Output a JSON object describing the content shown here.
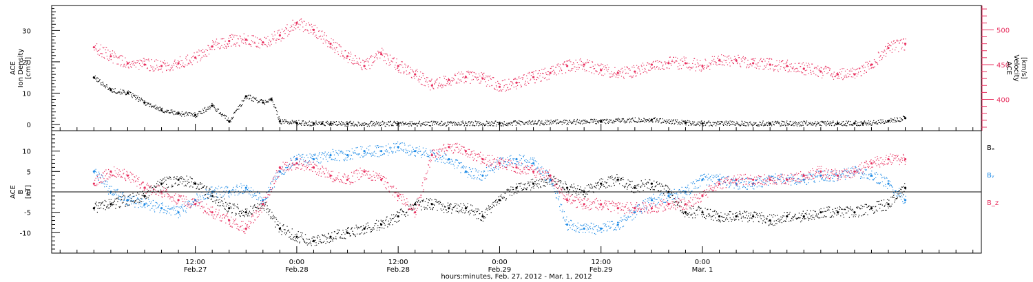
{
  "chart_data": [
    {
      "type": "scatter",
      "panel": "top",
      "ylabel_left": [
        "ACE",
        "Ion Density",
        "[cm⁻³]"
      ],
      "ylabel_right": [
        "ACE",
        "Velocity",
        "[km/s]"
      ],
      "ylim_left": [
        -2,
        38
      ],
      "ylim_right": [
        355,
        535
      ],
      "yticks_left": [
        0,
        10,
        20,
        30
      ],
      "yticks_right": [
        400,
        450,
        500
      ],
      "series": [
        {
          "name": "Ion Density",
          "axis": "left",
          "color": "#000000",
          "x": [
            0,
            2,
            4,
            6,
            8,
            10,
            12,
            14,
            16,
            18,
            20,
            21,
            22,
            24,
            26,
            27,
            28,
            30,
            36,
            48,
            60,
            66,
            70,
            72,
            80,
            88,
            90,
            91,
            94,
            96
          ],
          "y": [
            15,
            11,
            10,
            7,
            4.5,
            3.5,
            3,
            6,
            1,
            9,
            7,
            8,
            1,
            0.5,
            0.3,
            0.3,
            0.2,
            0.2,
            0.2,
            0.3,
            1,
            1.5,
            0.5,
            0.3,
            0.3,
            0.3,
            0.3,
            0.3,
            1,
            2
          ]
        },
        {
          "name": "Velocity",
          "axis": "right",
          "color": "#e8305f",
          "x": [
            0,
            2,
            4,
            6,
            8,
            10,
            12,
            14,
            16,
            18,
            20,
            22,
            24,
            26,
            28,
            30,
            32,
            34,
            36,
            38,
            40,
            42,
            44,
            46,
            48,
            50,
            52,
            54,
            56,
            58,
            60,
            62,
            64,
            66,
            68,
            70,
            72,
            74,
            76,
            78,
            80,
            82,
            84,
            86,
            88,
            90,
            92,
            94,
            96
          ],
          "y": [
            475,
            462,
            452,
            450,
            448,
            452,
            460,
            476,
            484,
            486,
            482,
            492,
            510,
            500,
            480,
            462,
            448,
            465,
            448,
            436,
            420,
            428,
            432,
            430,
            418,
            424,
            432,
            438,
            448,
            450,
            442,
            438,
            440,
            450,
            452,
            452,
            448,
            456,
            456,
            452,
            450,
            448,
            444,
            440,
            436,
            436,
            450,
            474,
            480
          ]
        }
      ]
    },
    {
      "type": "scatter",
      "panel": "bottom",
      "ylabel_left": [
        "ACE",
        "B",
        "[nT]"
      ],
      "ylim": [
        -15,
        15
      ],
      "yticks": [
        -10,
        -5,
        0,
        5,
        10
      ],
      "legend_placement": "right",
      "series": [
        {
          "name": "Bₓ",
          "color": "#000000",
          "x": [
            0,
            2,
            4,
            6,
            8,
            10,
            12,
            14,
            16,
            18,
            20,
            22,
            24,
            26,
            28,
            30,
            32,
            34,
            36,
            38,
            40,
            42,
            44,
            46,
            48,
            50,
            52,
            54,
            56,
            58,
            60,
            62,
            64,
            66,
            68,
            70,
            72,
            74,
            76,
            78,
            80,
            82,
            84,
            86,
            88,
            90,
            92,
            94,
            96
          ],
          "y": [
            -4,
            -3,
            -2,
            -1,
            2,
            3,
            2,
            -1,
            -4,
            -5,
            -3,
            -9,
            -11,
            -12,
            -11,
            -10,
            -9,
            -8,
            -6,
            -3,
            -3,
            -4,
            -4,
            -6,
            -2,
            1,
            2,
            3,
            1,
            0,
            2,
            3,
            1,
            2,
            0,
            -5,
            -5,
            -6,
            -6,
            -6,
            -7,
            -6,
            -6,
            -5,
            -5,
            -5,
            -4,
            -3,
            1
          ]
        },
        {
          "name": "Bᵧ",
          "color": "#1f8be6",
          "x": [
            0,
            2,
            4,
            6,
            8,
            10,
            12,
            14,
            16,
            18,
            20,
            22,
            24,
            26,
            28,
            30,
            32,
            34,
            36,
            38,
            40,
            42,
            44,
            46,
            48,
            50,
            52,
            54,
            56,
            58,
            60,
            62,
            64,
            66,
            68,
            70,
            72,
            74,
            76,
            78,
            80,
            82,
            84,
            86,
            88,
            90,
            92,
            94,
            96
          ],
          "y": [
            5,
            0,
            -2,
            -3,
            -4,
            -5,
            -2,
            0,
            0,
            1,
            -2,
            5,
            8,
            8,
            9,
            9,
            10,
            10,
            11,
            10,
            9,
            8,
            5,
            4,
            7,
            8,
            7,
            3,
            -8,
            -9,
            -9,
            -8,
            -5,
            -2,
            -1,
            0,
            3,
            3,
            2,
            2,
            3,
            3,
            3,
            4,
            4,
            5,
            4,
            2,
            -2
          ]
        },
        {
          "name": "B_z",
          "color": "#e8305f",
          "x": [
            0,
            2,
            4,
            6,
            8,
            10,
            12,
            14,
            16,
            18,
            20,
            22,
            24,
            26,
            28,
            30,
            32,
            34,
            36,
            38,
            40,
            42,
            44,
            46,
            48,
            50,
            52,
            54,
            56,
            58,
            60,
            62,
            64,
            66,
            68,
            70,
            72,
            74,
            76,
            78,
            80,
            82,
            84,
            86,
            88,
            90,
            92,
            94,
            96
          ],
          "y": [
            2,
            5,
            4,
            1,
            0,
            -2,
            -3,
            -5,
            -7,
            -9,
            -3,
            6,
            7,
            6,
            4,
            3,
            5,
            3,
            -1,
            -5,
            9,
            11,
            10,
            8,
            7,
            6,
            5,
            4,
            -2,
            -3,
            -3,
            -4,
            -4,
            -4,
            -3,
            -3,
            -1,
            2,
            3,
            3,
            3,
            3,
            4,
            5,
            4,
            5,
            7,
            8,
            8
          ]
        }
      ]
    }
  ],
  "x_axis": {
    "xlim": [
      -5,
      105
    ],
    "ticks": [
      {
        "x": 12,
        "time": "12:00",
        "date": "Feb.27"
      },
      {
        "x": 24,
        "time": "0:00",
        "date": "Feb.28"
      },
      {
        "x": 36,
        "time": "12:00",
        "date": "Feb.28"
      },
      {
        "x": 48,
        "time": "0:00",
        "date": "Feb.29"
      },
      {
        "x": 60,
        "time": "12:00",
        "date": "Feb.29"
      },
      {
        "x": 72,
        "time": "0:00",
        "date": "Mar. 1"
      }
    ],
    "xlabel": "hours:minutes, Feb. 27, 2012 - Mar.  1, 2012"
  }
}
